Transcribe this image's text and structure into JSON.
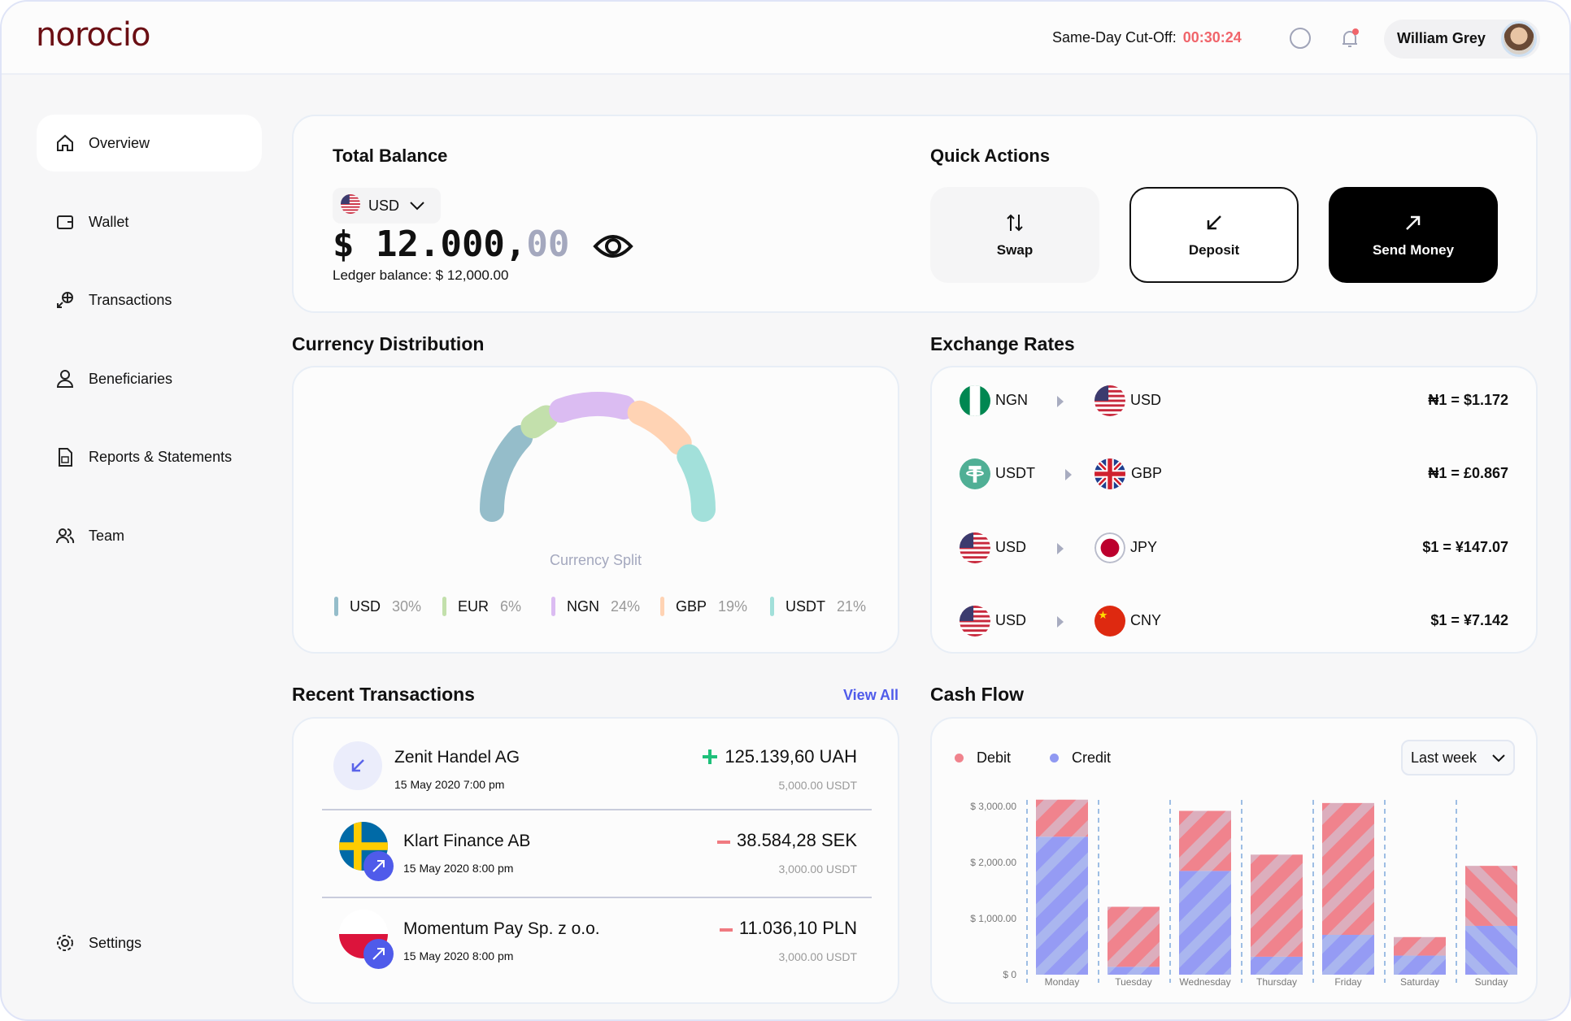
{
  "app": {
    "logo": "norocio"
  },
  "header": {
    "cutoff_label": "Same-Day Cut-Off:",
    "cutoff_timer": "00:30:24",
    "user_name": "William Grey"
  },
  "sidebar": {
    "items": [
      {
        "label": "Overview",
        "icon": "home-icon",
        "active": true
      },
      {
        "label": "Wallet",
        "icon": "wallet-icon"
      },
      {
        "label": "Transactions",
        "icon": "transactions-icon"
      },
      {
        "label": "Beneficiaries",
        "icon": "user-icon"
      },
      {
        "label": "Reports & Statements",
        "icon": "document-icon"
      },
      {
        "label": "Team",
        "icon": "team-icon"
      }
    ],
    "settings": "Settings"
  },
  "balance": {
    "title": "Total Balance",
    "currency": "USD",
    "amount_int": "$ 12.000,",
    "amount_dec": "00",
    "ledger": "Ledger balance: $ 12,000.00"
  },
  "quick_actions": {
    "title": "Quick Actions",
    "swap": "Swap",
    "deposit": "Deposit",
    "send": "Send Money"
  },
  "currency_distribution": {
    "title": "Currency Distribution",
    "center_label": "Currency Split"
  },
  "exchange_rates": {
    "title": "Exchange Rates",
    "rows": [
      {
        "from": "NGN",
        "from_flag": "ng",
        "to": "USD",
        "to_flag": "us",
        "rate": "₦1 = $1.172"
      },
      {
        "from": "USDT",
        "from_flag": "usdt",
        "to": "GBP",
        "to_flag": "gb",
        "rate": "₦1 = £0.867"
      },
      {
        "from": "USD",
        "from_flag": "us",
        "to": "JPY",
        "to_flag": "jp",
        "rate": "$1 = ¥147.07"
      },
      {
        "from": "USD",
        "from_flag": "us",
        "to": "CNY",
        "to_flag": "cn",
        "rate": "$1 = ¥7.142"
      }
    ]
  },
  "transactions": {
    "title": "Recent Transactions",
    "view_all": "View All",
    "rows": [
      {
        "name": "Zenit Handel AG",
        "date": "15 May 2020 7:00 pm",
        "sign": "+",
        "amount": "125.139,60 UAH",
        "usdt": "5,000.00 USDT",
        "icon": "incoming"
      },
      {
        "name": "Klart Finance AB",
        "date": "15 May 2020 8:00 pm",
        "sign": "-",
        "amount": "38.584,28 SEK",
        "usdt": "3,000.00 USDT",
        "icon": "se"
      },
      {
        "name": "Momentum Pay Sp. z o.o.",
        "date": "15 May 2020 8:00 pm",
        "sign": "-",
        "amount": "11.036,10 PLN",
        "usdt": "3,000.00 USDT",
        "icon": "pl"
      }
    ]
  },
  "cash_flow": {
    "title": "Cash Flow",
    "debit_label": "Debit",
    "credit_label": "Credit",
    "period": "Last week"
  },
  "colors": {
    "accent": "#4f5bea",
    "timer": "#f0656b",
    "debit": "#f0838d",
    "credit": "#9099f2",
    "positive": "#1ec07a",
    "negative": "#f07a80"
  },
  "chart_data": [
    {
      "type": "donut",
      "title": "Currency Split",
      "categories": [
        "USD",
        "EUR",
        "NGN",
        "GBP",
        "USDT"
      ],
      "values": [
        30,
        6,
        24,
        19,
        21
      ],
      "colors": [
        "#95bdca",
        "#c3e0ac",
        "#dbbcf2",
        "#ffd3b4",
        "#a2e0da"
      ],
      "legend": [
        "30%",
        "6%",
        "24%",
        "19%",
        "21%"
      ]
    },
    {
      "type": "bar",
      "stacked": true,
      "categories": [
        "Monday",
        "Tuesday",
        "Wednesday",
        "Thursday",
        "Friday",
        "Saturday",
        "Sunday"
      ],
      "series": [
        {
          "name": "Credit",
          "values": [
            2460,
            140,
            1850,
            320,
            710,
            340,
            870
          ]
        },
        {
          "name": "Debit",
          "values": [
            660,
            1070,
            1070,
            1820,
            2350,
            330,
            1070
          ]
        }
      ],
      "ylim": [
        0,
        3000
      ],
      "yticks": [
        "$ 0",
        "$ 1,000.00",
        "$ 2,000.00",
        "$ 3,000.00"
      ],
      "legend": "top-left"
    }
  ]
}
